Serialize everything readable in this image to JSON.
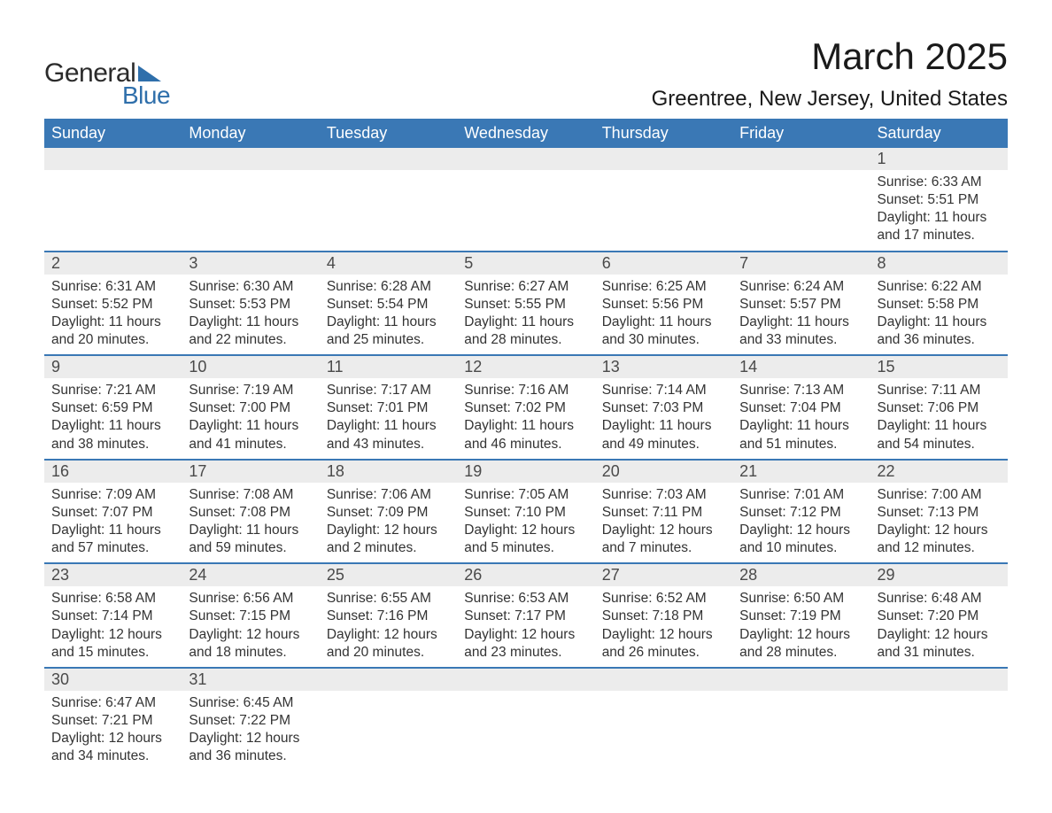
{
  "logo": {
    "line1": "General",
    "line2": "Blue"
  },
  "colors": {
    "header_bg": "#3a78b5",
    "header_text": "#ffffff",
    "strip_bg": "#ececec",
    "strip_border": "#3a78b5",
    "body_text": "#333333",
    "title_text": "#1a1a1a",
    "logo_accent": "#2f6fab"
  },
  "title": "March 2025",
  "location": "Greentree, New Jersey, United States",
  "weekdays": [
    "Sunday",
    "Monday",
    "Tuesday",
    "Wednesday",
    "Thursday",
    "Friday",
    "Saturday"
  ],
  "weeks": [
    [
      null,
      null,
      null,
      null,
      null,
      null,
      {
        "n": "1",
        "sunrise": "Sunrise: 6:33 AM",
        "sunset": "Sunset: 5:51 PM",
        "daylight": "Daylight: 11 hours and 17 minutes."
      }
    ],
    [
      {
        "n": "2",
        "sunrise": "Sunrise: 6:31 AM",
        "sunset": "Sunset: 5:52 PM",
        "daylight": "Daylight: 11 hours and 20 minutes."
      },
      {
        "n": "3",
        "sunrise": "Sunrise: 6:30 AM",
        "sunset": "Sunset: 5:53 PM",
        "daylight": "Daylight: 11 hours and 22 minutes."
      },
      {
        "n": "4",
        "sunrise": "Sunrise: 6:28 AM",
        "sunset": "Sunset: 5:54 PM",
        "daylight": "Daylight: 11 hours and 25 minutes."
      },
      {
        "n": "5",
        "sunrise": "Sunrise: 6:27 AM",
        "sunset": "Sunset: 5:55 PM",
        "daylight": "Daylight: 11 hours and 28 minutes."
      },
      {
        "n": "6",
        "sunrise": "Sunrise: 6:25 AM",
        "sunset": "Sunset: 5:56 PM",
        "daylight": "Daylight: 11 hours and 30 minutes."
      },
      {
        "n": "7",
        "sunrise": "Sunrise: 6:24 AM",
        "sunset": "Sunset: 5:57 PM",
        "daylight": "Daylight: 11 hours and 33 minutes."
      },
      {
        "n": "8",
        "sunrise": "Sunrise: 6:22 AM",
        "sunset": "Sunset: 5:58 PM",
        "daylight": "Daylight: 11 hours and 36 minutes."
      }
    ],
    [
      {
        "n": "9",
        "sunrise": "Sunrise: 7:21 AM",
        "sunset": "Sunset: 6:59 PM",
        "daylight": "Daylight: 11 hours and 38 minutes."
      },
      {
        "n": "10",
        "sunrise": "Sunrise: 7:19 AM",
        "sunset": "Sunset: 7:00 PM",
        "daylight": "Daylight: 11 hours and 41 minutes."
      },
      {
        "n": "11",
        "sunrise": "Sunrise: 7:17 AM",
        "sunset": "Sunset: 7:01 PM",
        "daylight": "Daylight: 11 hours and 43 minutes."
      },
      {
        "n": "12",
        "sunrise": "Sunrise: 7:16 AM",
        "sunset": "Sunset: 7:02 PM",
        "daylight": "Daylight: 11 hours and 46 minutes."
      },
      {
        "n": "13",
        "sunrise": "Sunrise: 7:14 AM",
        "sunset": "Sunset: 7:03 PM",
        "daylight": "Daylight: 11 hours and 49 minutes."
      },
      {
        "n": "14",
        "sunrise": "Sunrise: 7:13 AM",
        "sunset": "Sunset: 7:04 PM",
        "daylight": "Daylight: 11 hours and 51 minutes."
      },
      {
        "n": "15",
        "sunrise": "Sunrise: 7:11 AM",
        "sunset": "Sunset: 7:06 PM",
        "daylight": "Daylight: 11 hours and 54 minutes."
      }
    ],
    [
      {
        "n": "16",
        "sunrise": "Sunrise: 7:09 AM",
        "sunset": "Sunset: 7:07 PM",
        "daylight": "Daylight: 11 hours and 57 minutes."
      },
      {
        "n": "17",
        "sunrise": "Sunrise: 7:08 AM",
        "sunset": "Sunset: 7:08 PM",
        "daylight": "Daylight: 11 hours and 59 minutes."
      },
      {
        "n": "18",
        "sunrise": "Sunrise: 7:06 AM",
        "sunset": "Sunset: 7:09 PM",
        "daylight": "Daylight: 12 hours and 2 minutes."
      },
      {
        "n": "19",
        "sunrise": "Sunrise: 7:05 AM",
        "sunset": "Sunset: 7:10 PM",
        "daylight": "Daylight: 12 hours and 5 minutes."
      },
      {
        "n": "20",
        "sunrise": "Sunrise: 7:03 AM",
        "sunset": "Sunset: 7:11 PM",
        "daylight": "Daylight: 12 hours and 7 minutes."
      },
      {
        "n": "21",
        "sunrise": "Sunrise: 7:01 AM",
        "sunset": "Sunset: 7:12 PM",
        "daylight": "Daylight: 12 hours and 10 minutes."
      },
      {
        "n": "22",
        "sunrise": "Sunrise: 7:00 AM",
        "sunset": "Sunset: 7:13 PM",
        "daylight": "Daylight: 12 hours and 12 minutes."
      }
    ],
    [
      {
        "n": "23",
        "sunrise": "Sunrise: 6:58 AM",
        "sunset": "Sunset: 7:14 PM",
        "daylight": "Daylight: 12 hours and 15 minutes."
      },
      {
        "n": "24",
        "sunrise": "Sunrise: 6:56 AM",
        "sunset": "Sunset: 7:15 PM",
        "daylight": "Daylight: 12 hours and 18 minutes."
      },
      {
        "n": "25",
        "sunrise": "Sunrise: 6:55 AM",
        "sunset": "Sunset: 7:16 PM",
        "daylight": "Daylight: 12 hours and 20 minutes."
      },
      {
        "n": "26",
        "sunrise": "Sunrise: 6:53 AM",
        "sunset": "Sunset: 7:17 PM",
        "daylight": "Daylight: 12 hours and 23 minutes."
      },
      {
        "n": "27",
        "sunrise": "Sunrise: 6:52 AM",
        "sunset": "Sunset: 7:18 PM",
        "daylight": "Daylight: 12 hours and 26 minutes."
      },
      {
        "n": "28",
        "sunrise": "Sunrise: 6:50 AM",
        "sunset": "Sunset: 7:19 PM",
        "daylight": "Daylight: 12 hours and 28 minutes."
      },
      {
        "n": "29",
        "sunrise": "Sunrise: 6:48 AM",
        "sunset": "Sunset: 7:20 PM",
        "daylight": "Daylight: 12 hours and 31 minutes."
      }
    ],
    [
      {
        "n": "30",
        "sunrise": "Sunrise: 6:47 AM",
        "sunset": "Sunset: 7:21 PM",
        "daylight": "Daylight: 12 hours and 34 minutes."
      },
      {
        "n": "31",
        "sunrise": "Sunrise: 6:45 AM",
        "sunset": "Sunset: 7:22 PM",
        "daylight": "Daylight: 12 hours and 36 minutes."
      },
      null,
      null,
      null,
      null,
      null
    ]
  ]
}
